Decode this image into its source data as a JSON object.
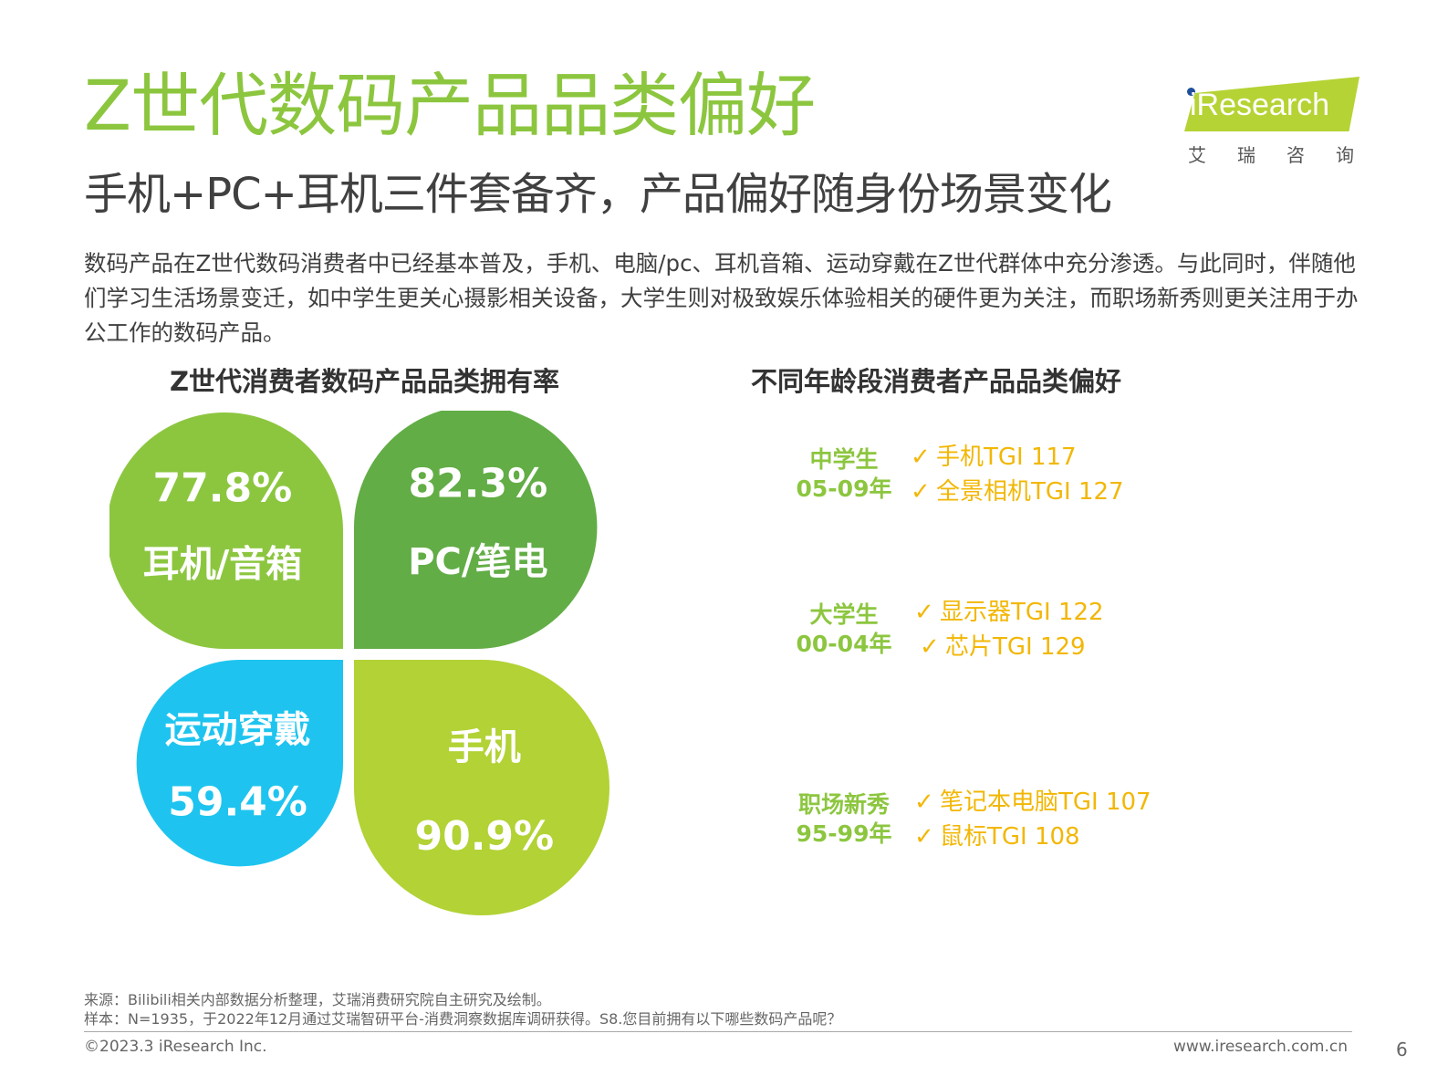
{
  "title": "Z世代数码产品品类偏好",
  "logo": {
    "brand": "iResearch",
    "cn": "艾瑞咨询"
  },
  "subtitle": "手机+PC+耳机三件套备齐，产品偏好随身份场景变化",
  "description": "数码产品在Z世代数码消费者中已经基本普及，手机、电脑/pc、耳机音箱、运动穿戴在Z世代群体中充分渗透。与此同时，伴随他们学习生活场景变迁，如中学生更关心摄影相关设备，大学生则对极致娱乐体验相关的硬件更为关注，而职场新秀则更关注用于办公工作的数码产品。",
  "chart_title": "Z世代消费者数码产品品类拥有率",
  "chart_data": {
    "type": "pie",
    "title": "Z世代消费者数码产品品类拥有率",
    "categories": [
      "耳机/音箱",
      "PC/笔电",
      "运动穿戴",
      "手机"
    ],
    "values": [
      77.8,
      82.3,
      59.4,
      90.9
    ],
    "value_labels": [
      "77.8%",
      "82.3%",
      "59.4%",
      "90.9%"
    ],
    "unit": "%",
    "colors": [
      "#8cc63f",
      "#62ad46",
      "#1ec4ef",
      "#b2d235"
    ]
  },
  "pref_title": "不同年龄段消费者产品品类偏好",
  "preferences": [
    {
      "name": "中学生",
      "years": "05-09年",
      "items": [
        "手机TGI 117",
        "全景相机TGI 127"
      ]
    },
    {
      "name": "大学生",
      "years": "00-04年",
      "items": [
        "显示器TGI 122",
        "芯片TGI 129"
      ]
    },
    {
      "name": "职场新秀",
      "years": "95-99年",
      "items": [
        "笔记本电脑TGI 107",
        "鼠标TGI 108"
      ]
    }
  ],
  "check_glyph": "✓",
  "colors": {
    "brand_green": "#8cc63f",
    "tgi_yellow": "#f2b705",
    "text_gray": "#404040"
  },
  "source_lines": [
    "来源：Bilibili相关内部数据分析整理，艾瑞消费研究院自主研究及绘制。",
    "样本：N=1935，于2022年12月通过艾瑞智研平台-消费洞察数据库调研获得。S8.您目前拥有以下哪些数码产品呢？"
  ],
  "copyright": "©2023.3 iResearch Inc.",
  "url": "www.iresearch.com.cn",
  "page_number": "6"
}
